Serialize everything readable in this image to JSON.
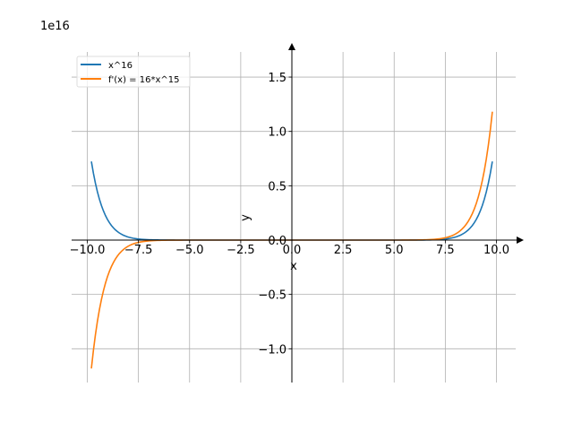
{
  "chart_data": {
    "type": "line",
    "title": "",
    "xlabel": "x",
    "ylabel": "y",
    "y_offset_label": "1e16",
    "xlim": [
      -10.8,
      10.9
    ],
    "ylim": [
      -1.31,
      1.735
    ],
    "y_units": 1e+16,
    "grid": true,
    "legend_position": "top-left",
    "x_ticks": [
      -10.0,
      -7.5,
      -5.0,
      -2.5,
      0.0,
      2.5,
      5.0,
      7.5,
      10.0
    ],
    "x_tick_labels": [
      "−10.0",
      "−7.5",
      "−5.0",
      "−2.5",
      "0.0",
      "2.5",
      "5.0",
      "7.5",
      "10.0"
    ],
    "y_ticks": [
      -1.0,
      -0.5,
      0.0,
      0.5,
      1.0,
      1.5
    ],
    "y_tick_labels": [
      "−1.0",
      "−0.5",
      "0.0",
      "0.5",
      "1.0",
      "1.5"
    ],
    "series": [
      {
        "name": "x^16",
        "color": "#1f77b4",
        "power": 16,
        "coef": 1,
        "x_start": -9.8,
        "x_end": 9.8,
        "y_at_start": 0.724,
        "y_at_end": 0.724
      },
      {
        "name": "f'(x) = 16*x^15",
        "color": "#ff7f0e",
        "power": 15,
        "coef": 16,
        "x_start": -9.8,
        "x_end": 9.8,
        "y_at_start": -1.182,
        "y_at_end": 1.182
      }
    ]
  }
}
